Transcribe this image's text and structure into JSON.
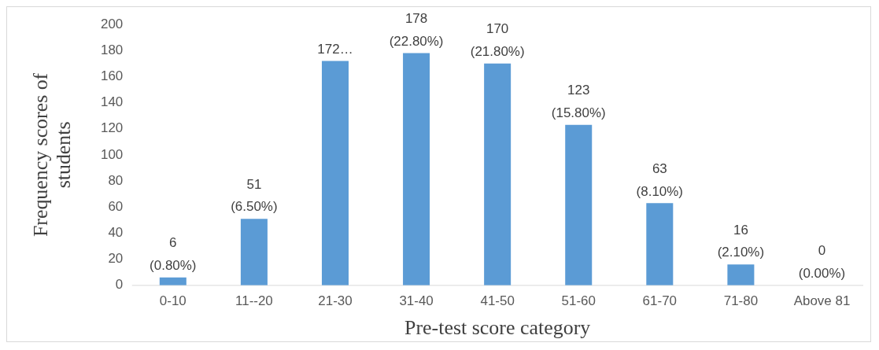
{
  "chart_data": {
    "type": "bar",
    "xlabel": "Pre-test score category",
    "ylabel": "Frequency scores of students",
    "categories": [
      "0-10",
      "11--20",
      "21-30",
      "31-40",
      "41-50",
      "51-60",
      "61-70",
      "71-80",
      "Above 81"
    ],
    "values": [
      6,
      51,
      172,
      178,
      170,
      123,
      63,
      16,
      0
    ],
    "color": "#5b9bd5",
    "value_labels": [
      "6\n(0.80%)",
      "51\n(6.50%)",
      "172…",
      "178\n(22.80%)",
      "170\n(21.80%)",
      "123\n(15.80%)",
      "63\n(8.10%)",
      "16\n(2.10%)",
      "0\n(0.00%)"
    ],
    "ylim": [
      0,
      200
    ],
    "yticks": [
      0,
      20,
      40,
      60,
      80,
      100,
      120,
      140,
      160,
      180,
      200
    ],
    "grid": false,
    "legend": false
  }
}
